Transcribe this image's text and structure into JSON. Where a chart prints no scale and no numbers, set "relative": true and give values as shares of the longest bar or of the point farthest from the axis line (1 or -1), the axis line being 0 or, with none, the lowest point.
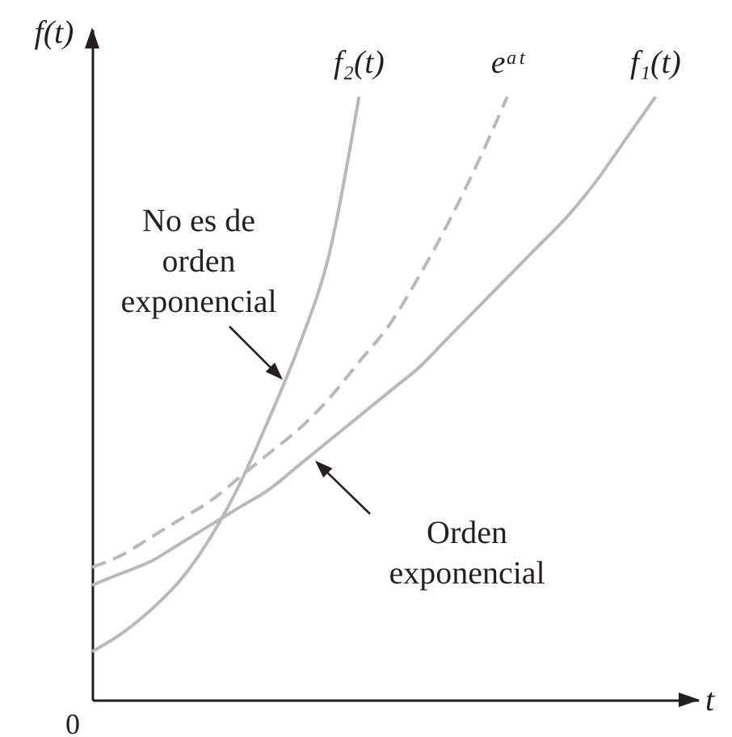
{
  "chart_data": {
    "type": "line",
    "xlabel": "t",
    "ylabel": "f(t)",
    "relative": true,
    "categories": [
      null,
      null,
      null,
      null,
      null,
      null,
      null,
      null,
      null,
      null,
      null,
      null,
      null,
      null,
      null,
      null,
      null,
      null,
      null,
      null
    ],
    "series": [
      {
        "name": "f₂(t)",
        "color": "#b9b9b9",
        "line_style": "solid",
        "values": [
          0.08,
          0.11,
          0.15,
          0.2,
          0.27,
          0.36,
          0.47,
          0.59,
          0.74,
          1,
          null,
          null,
          null,
          null,
          null,
          null,
          null,
          null,
          null,
          null
        ]
      },
      {
        "name": "eᵃᵗ",
        "color": "#b9b9b9",
        "line_style": "dashed",
        "values": [
          0.22,
          0.24,
          0.27,
          0.3,
          0.33,
          0.37,
          0.41,
          0.45,
          0.5,
          0.56,
          0.62,
          0.7,
          0.79,
          0.89,
          1,
          null,
          null,
          null,
          null,
          null
        ]
      },
      {
        "name": "f₁(t)",
        "color": "#b9b9b9",
        "line_style": "solid",
        "values": [
          0.19,
          0.21,
          0.23,
          0.26,
          0.29,
          0.32,
          0.35,
          0.39,
          0.43,
          0.47,
          0.51,
          0.55,
          0.6,
          0.65,
          0.7,
          0.75,
          0.8,
          0.86,
          0.93,
          1
        ]
      }
    ],
    "annotations": [
      "No es de orden exponencial",
      "Orden exponencial",
      "0"
    ]
  }
}
